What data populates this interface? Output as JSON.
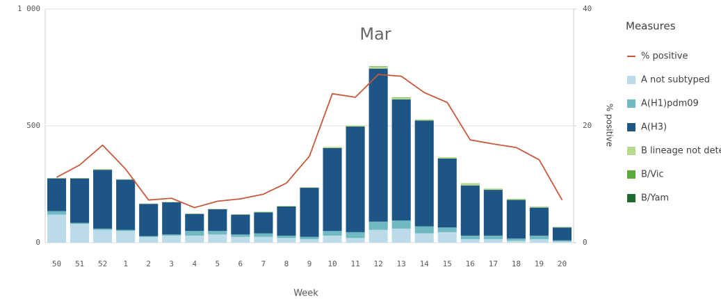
{
  "chart_data": {
    "type": "bar",
    "stacked": true,
    "annotation": "Mar",
    "x_label": "Week",
    "y2_label": "% positive",
    "legend_title": "Measures",
    "categories": [
      "50",
      "51",
      "52",
      "1",
      "2",
      "3",
      "4",
      "5",
      "6",
      "7",
      "8",
      "9",
      "10",
      "11",
      "12",
      "13",
      "14",
      "15",
      "16",
      "17",
      "18",
      "19",
      "20"
    ],
    "ylim": [
      0,
      1000
    ],
    "yticks": [
      0,
      500,
      {
        "value": 1000,
        "label": "1 000"
      }
    ],
    "y2lim": [
      0,
      40
    ],
    "y2ticks": [
      0,
      20,
      40
    ],
    "grid": true,
    "series": [
      {
        "name": "% positive",
        "type": "line",
        "axis": "y2",
        "color": "#c8573a",
        "values": [
          11.2,
          13.3,
          16.7,
          12.6,
          7.3,
          7.6,
          6.0,
          7.1,
          7.5,
          8.3,
          10.2,
          14.8,
          25.5,
          24.9,
          28.8,
          28.5,
          25.7,
          24.0,
          17.6,
          16.9,
          16.3,
          14.2,
          7.3
        ]
      },
      {
        "name": "A not subtyped",
        "color": "#bcdbe9",
        "values": [
          120,
          80,
          55,
          50,
          25,
          30,
          30,
          35,
          25,
          25,
          20,
          15,
          30,
          20,
          55,
          60,
          40,
          45,
          15,
          15,
          8,
          15,
          5
        ]
      },
      {
        "name": "A(H1)pdm09",
        "color": "#6fb9c2",
        "values": [
          15,
          5,
          5,
          5,
          3,
          5,
          20,
          15,
          10,
          15,
          10,
          10,
          20,
          25,
          35,
          35,
          30,
          20,
          15,
          15,
          10,
          15,
          5
        ]
      },
      {
        "name": "A(H3)",
        "color": "#1d5585",
        "values": [
          140,
          190,
          252,
          215,
          138,
          138,
          73,
          93,
          85,
          90,
          125,
          210,
          355,
          452,
          655,
          518,
          453,
          295,
          215,
          196,
          165,
          120,
          55
        ]
      },
      {
        "name": "B lineage not dete",
        "color": "#b7da8e",
        "values": [
          2,
          2,
          3,
          2,
          2,
          2,
          2,
          2,
          2,
          3,
          3,
          2,
          5,
          5,
          8,
          7,
          5,
          6,
          10,
          6,
          5,
          5,
          3
        ]
      },
      {
        "name": "B/Vic",
        "color": "#5aab3a",
        "values": [
          0,
          0,
          0,
          0,
          0,
          0,
          0,
          0,
          0,
          0,
          0,
          0,
          0,
          0,
          2,
          2,
          0,
          0,
          0,
          0,
          0,
          0,
          0
        ]
      },
      {
        "name": "B/Yam",
        "color": "#1e6b30",
        "values": [
          0,
          0,
          0,
          0,
          0,
          0,
          0,
          0,
          0,
          0,
          0,
          0,
          0,
          0,
          0,
          0,
          0,
          0,
          0,
          0,
          0,
          0,
          0
        ]
      }
    ]
  }
}
